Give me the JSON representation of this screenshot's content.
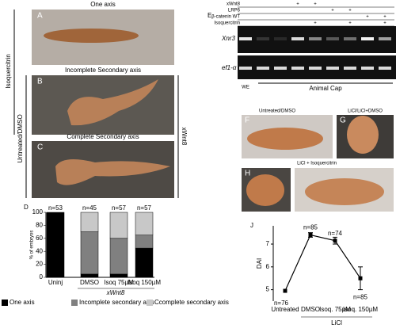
{
  "figure": {
    "panel_a": {
      "label": "A",
      "title": "One axis"
    },
    "panel_b": {
      "label": "B",
      "title": "Incomplete Secondary axis"
    },
    "panel_c": {
      "label": "C",
      "title": "Complete Secondary axis"
    },
    "side_labels": {
      "isoquercitrin": "Isoquercitrin",
      "untreated": "Untreated/DMSO",
      "xwnt8": "xWnt8"
    },
    "panel_e": {
      "label": "E",
      "conditions": [
        {
          "name": "xWnt8",
          "lanes": [
            null,
            null,
            null,
            "+",
            "+",
            null,
            null,
            null,
            null
          ]
        },
        {
          "name": "LRP6",
          "lanes": [
            null,
            null,
            null,
            null,
            null,
            "+",
            "+",
            null,
            null
          ]
        },
        {
          "name": "β-catenin WT",
          "lanes": [
            null,
            null,
            null,
            null,
            null,
            null,
            null,
            "+",
            "+"
          ]
        },
        {
          "name": "Isoquercitrin",
          "lanes": [
            null,
            null,
            null,
            null,
            "+",
            null,
            "+",
            null,
            "+"
          ]
        }
      ],
      "genes": [
        "Xnr3",
        "ef1-α"
      ],
      "whole_embryo": "WE",
      "animal_cap": "Animal Cap"
    },
    "panel_f": {
      "label": "F",
      "title": "Untreated/DMSO"
    },
    "panel_g": {
      "label": "G",
      "title": "LiCl/LiCl+DMSO"
    },
    "panel_h": {
      "label": "H",
      "title": "LiCl + Isoquercitrin"
    }
  },
  "chart_data": [
    {
      "type": "bar",
      "label": "D",
      "ylabel": "% of embryos",
      "categories": [
        "Uninj",
        "DMSO",
        "Isoq 75µM",
        "Isoq 150µM"
      ],
      "n_labels": [
        "n=53",
        "n=45",
        "n=57",
        "n=57"
      ],
      "group_label": "xWnt8",
      "series": [
        {
          "name": "One axis",
          "color": "#000000",
          "values": [
            100,
            5,
            5,
            45
          ]
        },
        {
          "name": "Incomplete secondary axis",
          "color": "#808080",
          "values": [
            0,
            65,
            55,
            20
          ]
        },
        {
          "name": "Ccomplete secondary axis",
          "color": "#c8c8c8",
          "values": [
            0,
            30,
            40,
            35
          ]
        }
      ],
      "ylim": [
        0,
        100
      ],
      "yticks": [
        0,
        20,
        40,
        60,
        80,
        100
      ]
    },
    {
      "type": "line",
      "label": "J",
      "ylabel": "DAI",
      "categories": [
        "Untreated",
        "DMSO",
        "Isoq. 75µM",
        "Isoq. 150µM"
      ],
      "values": [
        4.95,
        7.4,
        7.15,
        5.5
      ],
      "errors": [
        null,
        0.1,
        0.15,
        0.5
      ],
      "n_labels": [
        "n=76",
        "n=85",
        "n=74",
        "n=85"
      ],
      "group_label": "LiCl",
      "ylim": [
        4.5,
        7.8
      ],
      "yticks": [
        5,
        6,
        7
      ]
    }
  ]
}
